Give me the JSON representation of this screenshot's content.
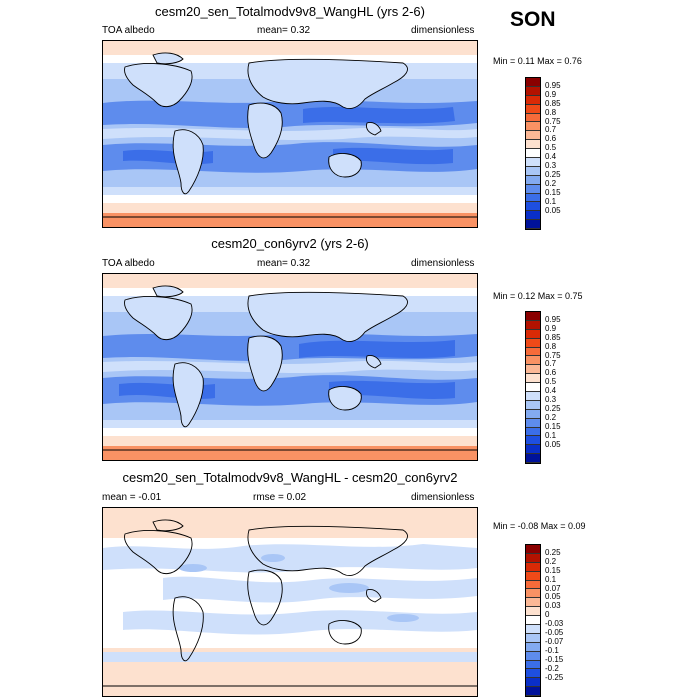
{
  "season": "SON",
  "panels": [
    {
      "title": "cesm20_sen_Totalmodv9v8_WangHL (yrs 2-6)",
      "left_label": "TOA albedo",
      "center_label": "mean=   0.32",
      "right_label": "dimensionless",
      "minmax": "Min =   0.11 Max =   0.76",
      "kind": "abs"
    },
    {
      "title": "cesm20_con6yrv2 (yrs 2-6)",
      "left_label": "TOA albedo",
      "center_label": "mean=   0.32",
      "right_label": "dimensionless",
      "minmax": "Min =   0.12 Max =   0.75",
      "kind": "abs"
    },
    {
      "title": "cesm20_sen_Totalmodv9v8_WangHL - cesm20_con6yrv2",
      "left_label": "mean =  -0.01",
      "center_label": "rmse =   0.02",
      "right_label": "dimensionless",
      "minmax": "Min =  -0.08 Max =   0.09",
      "kind": "diff"
    }
  ],
  "colorbars": {
    "abs": {
      "ticks": [
        "0.95",
        "0.9",
        "0.85",
        "0.8",
        "0.75",
        "0.7",
        "0.6",
        "0.5",
        "0.4",
        "0.3",
        "0.25",
        "0.2",
        "0.15",
        "0.1",
        "0.05"
      ],
      "colors": [
        "#8a0000",
        "#b31200",
        "#d92a06",
        "#ef4a18",
        "#f66b3a",
        "#f99264",
        "#fbb896",
        "#fde1cf",
        "#ffffff",
        "#cfe0fb",
        "#a9c6f6",
        "#83aaf0",
        "#5e8ced",
        "#3b6ee8",
        "#1e4fe0",
        "#0a2fc8",
        "#00129a"
      ]
    },
    "diff": {
      "ticks": [
        "0.25",
        "0.2",
        "0.15",
        "0.1",
        "0.07",
        "0.05",
        "0.03",
        "0",
        "-0.03",
        "-0.05",
        "-0.07",
        "-0.1",
        "-0.15",
        "-0.2",
        "-0.25"
      ],
      "colors": [
        "#8a0000",
        "#b31200",
        "#d92a06",
        "#ef4a18",
        "#f66b3a",
        "#f99264",
        "#fbb896",
        "#fde1cf",
        "#ffffff",
        "#cfe0fb",
        "#a9c6f6",
        "#83aaf0",
        "#5e8ced",
        "#3b6ee8",
        "#1e4fe0",
        "#0a2fc8",
        "#00129a"
      ]
    }
  }
}
